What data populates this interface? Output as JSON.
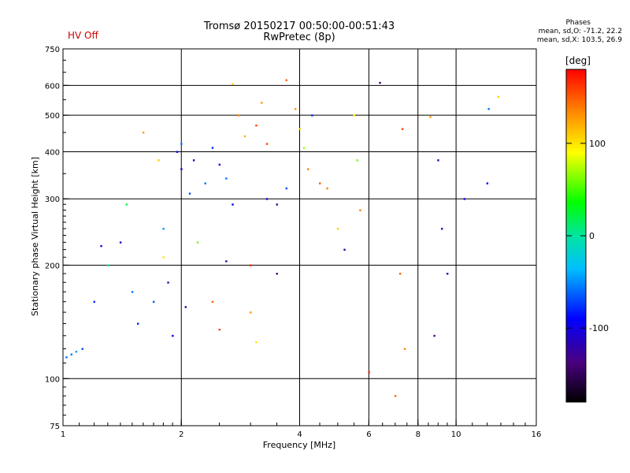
{
  "header": {
    "title_line1": "Tromsø 20150217 00:50:00-00:51:43",
    "title_line2": "RwPretec (8p)",
    "hv_status": "HV Off",
    "phase_title": "Phases",
    "phase_o": "mean, sd,O: -71.2, 22.2",
    "phase_x": "mean, sd,X: 103.5, 26.9"
  },
  "colorbar": {
    "label": "[deg]",
    "ticks": [
      "100",
      "0",
      "-100"
    ],
    "tick_values": [
      100,
      0,
      -100
    ],
    "range": [
      -180,
      180
    ]
  },
  "chart_data": {
    "type": "scatter",
    "xlabel": "Frequency [MHz]",
    "ylabel": "Stationary phase Virtual Height [km]",
    "xscale": "log",
    "yscale": "log",
    "xlim": [
      1,
      16
    ],
    "ylim": [
      75,
      750
    ],
    "xticks": [
      1,
      2,
      4,
      6,
      8,
      10,
      16
    ],
    "yticks": [
      75,
      100,
      200,
      300,
      400,
      500,
      600,
      750
    ],
    "grid": true,
    "color_encoding": "phase [deg]",
    "series": [
      {
        "values": [
          [
            1.02,
            114,
            -60
          ],
          [
            1.05,
            116,
            -60
          ],
          [
            1.08,
            118,
            -50
          ],
          [
            1.12,
            120,
            -70
          ],
          [
            1.2,
            160,
            -80
          ],
          [
            1.25,
            225,
            -100
          ],
          [
            1.3,
            200,
            0
          ],
          [
            1.4,
            230,
            -110
          ],
          [
            1.45,
            290,
            20
          ],
          [
            1.5,
            170,
            -60
          ],
          [
            1.55,
            140,
            -80
          ],
          [
            1.6,
            450,
            130
          ],
          [
            1.7,
            160,
            -70
          ],
          [
            1.75,
            380,
            110
          ],
          [
            1.8,
            250,
            -50
          ],
          [
            1.8,
            210,
            100
          ],
          [
            1.85,
            180,
            -120
          ],
          [
            1.9,
            130,
            -90
          ],
          [
            1.95,
            400,
            -90
          ],
          [
            2.0,
            420,
            -60
          ],
          [
            2.0,
            360,
            -100
          ],
          [
            2.05,
            155,
            -120
          ],
          [
            2.1,
            310,
            -70
          ],
          [
            2.15,
            380,
            -110
          ],
          [
            2.2,
            230,
            60
          ],
          [
            2.3,
            330,
            -60
          ],
          [
            2.4,
            410,
            -80
          ],
          [
            2.5,
            370,
            -100
          ],
          [
            2.6,
            340,
            -60
          ],
          [
            2.7,
            290,
            -90
          ],
          [
            2.4,
            160,
            150
          ],
          [
            2.5,
            135,
            160
          ],
          [
            2.6,
            205,
            -120
          ],
          [
            2.7,
            605,
            110
          ],
          [
            2.8,
            500,
            140
          ],
          [
            2.9,
            440,
            120
          ],
          [
            3.0,
            150,
            130
          ],
          [
            3.0,
            200,
            170
          ],
          [
            3.1,
            470,
            160
          ],
          [
            3.1,
            125,
            100
          ],
          [
            3.2,
            540,
            130
          ],
          [
            3.3,
            300,
            -100
          ],
          [
            3.3,
            420,
            160
          ],
          [
            3.5,
            290,
            -120
          ],
          [
            3.5,
            190,
            -130
          ],
          [
            3.7,
            320,
            -70
          ],
          [
            3.7,
            620,
            150
          ],
          [
            3.9,
            520,
            130
          ],
          [
            4.0,
            460,
            110
          ],
          [
            4.1,
            410,
            70
          ],
          [
            4.2,
            360,
            140
          ],
          [
            4.3,
            500,
            -80
          ],
          [
            4.5,
            330,
            150
          ],
          [
            4.7,
            320,
            140
          ],
          [
            5.0,
            250,
            110
          ],
          [
            5.2,
            220,
            -120
          ],
          [
            5.5,
            500,
            90
          ],
          [
            5.6,
            380,
            60
          ],
          [
            5.7,
            280,
            140
          ],
          [
            6.0,
            104,
            170
          ],
          [
            6.4,
            610,
            -140
          ],
          [
            7.0,
            90,
            150
          ],
          [
            7.2,
            190,
            150
          ],
          [
            7.3,
            460,
            160
          ],
          [
            7.4,
            120,
            140
          ],
          [
            8.6,
            495,
            130
          ],
          [
            8.8,
            130,
            -130
          ],
          [
            9.0,
            380,
            -110
          ],
          [
            9.2,
            250,
            -120
          ],
          [
            9.5,
            190,
            -110
          ],
          [
            10.5,
            300,
            -100
          ],
          [
            12.0,
            330,
            -90
          ],
          [
            12.1,
            520,
            -60
          ],
          [
            12.8,
            560,
            110
          ]
        ]
      }
    ]
  }
}
